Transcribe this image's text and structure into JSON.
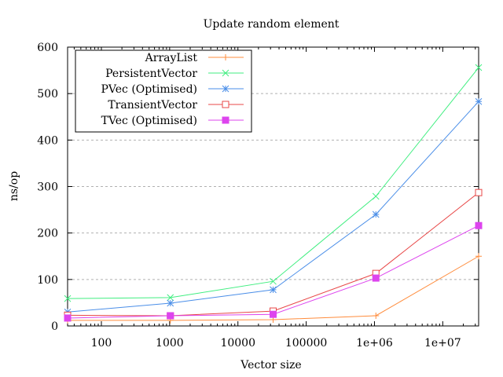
{
  "chart_data": {
    "type": "line",
    "title": "Update random element",
    "xlabel": "Vector size",
    "ylabel": "ns/op",
    "xscale": "log",
    "xlim": [
      32,
      33554432
    ],
    "ylim": [
      0,
      600
    ],
    "x_ticks": [
      "100",
      "1000",
      "10000",
      "100000",
      "1e+06",
      "1e+07"
    ],
    "y_ticks": [
      "0",
      "100",
      "200",
      "300",
      "400",
      "500",
      "600"
    ],
    "grid": true,
    "legend_position": "top-left",
    "x": [
      32,
      1024,
      32768,
      1048576,
      33554432
    ],
    "series": [
      {
        "name": "ArrayList",
        "color": "#ff8c3c",
        "marker": "plus",
        "values": [
          12,
          12,
          13.5,
          22,
          150
        ]
      },
      {
        "name": "PersistentVector",
        "color": "#40ee80",
        "marker": "cross",
        "values": [
          59,
          61,
          96,
          279,
          556
        ]
      },
      {
        "name": "PVec (Optimised)",
        "color": "#4a8ee8",
        "marker": "star",
        "values": [
          30,
          49,
          78,
          240,
          483
        ]
      },
      {
        "name": "TransientVector",
        "color": "#e84848",
        "marker": "open-square",
        "values": [
          23,
          22,
          32,
          113,
          287
        ]
      },
      {
        "name": "TVec (Optimised)",
        "color": "#dd44ee",
        "marker": "filled-square",
        "values": [
          17,
          22,
          25,
          103,
          216
        ]
      }
    ]
  }
}
